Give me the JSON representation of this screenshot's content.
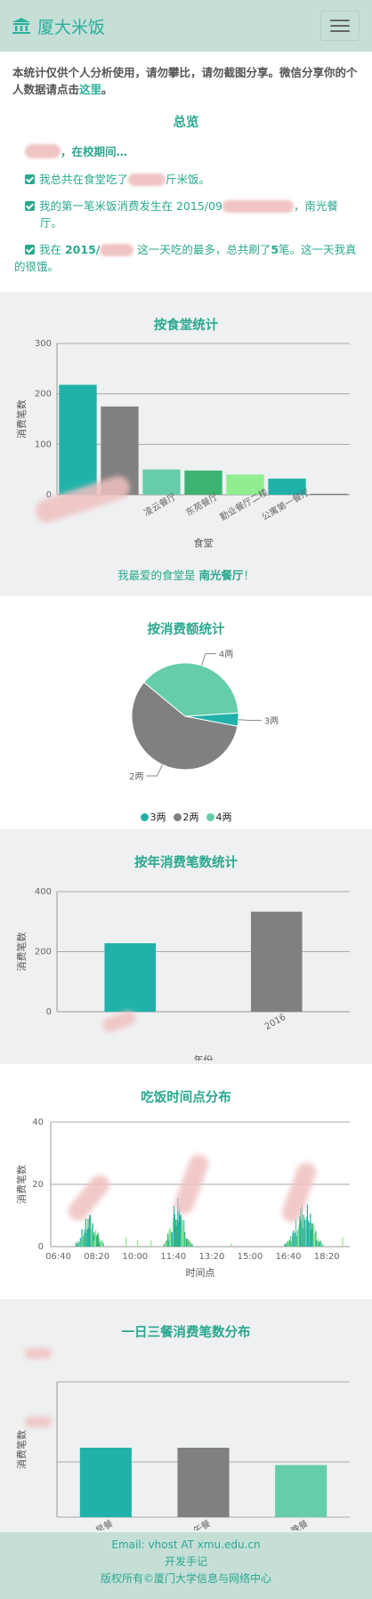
{
  "nav": {
    "brand": "厦大米饭",
    "icon": "bank-icon",
    "menu_icon": "hamburger-menu-icon"
  },
  "intro": {
    "text": "本统计仅供个人分析使用，请勿攀比，请勿截图分享。微信分享你的个人数据请点击",
    "link": "这里",
    "end": "。"
  },
  "overview": {
    "title": "总览",
    "greeting": "，在校期间…",
    "items": [
      {
        "pre": "我总共在食堂吃了",
        "post": "斤米饭。"
      },
      {
        "pre": "我的第一笔米饭消费发生在 2015/09",
        "post": "，南光餐厅。"
      },
      {
        "pre": "我在 ",
        "bold": "2015/",
        "mid": " 这一天吃的最多，总共刷了",
        "count": "5",
        "post": "笔。这一天我真的很饿。"
      }
    ]
  },
  "colors": {
    "teal": "#20b2aa",
    "gray": "#808080",
    "mint": "#66cdaa",
    "green": "#3cb371",
    "lightgreen": "#90ee90",
    "accent": "#2aa88f"
  },
  "canteen": {
    "title": "按食堂统计",
    "favorite_pre": "我最爱的食堂是 ",
    "favorite": "南光餐厅",
    "favorite_post": "！",
    "chart_data": {
      "type": "bar",
      "xlabel": "食堂",
      "ylabel": "消费笔数",
      "ylim": [
        0,
        300
      ],
      "yticks": [
        0,
        100,
        200,
        300
      ],
      "categories": [
        "",
        "",
        "凌云餐厅",
        "东苑餐厅",
        "勤业餐厅二楼",
        "公寓第一餐厅",
        ""
      ],
      "values": [
        218,
        175,
        50,
        48,
        40,
        32,
        2
      ],
      "colors": [
        "#20b2aa",
        "#808080",
        "#66cdaa",
        "#3cb371",
        "#90ee90",
        "#20b2aa",
        "#808080"
      ]
    }
  },
  "amount": {
    "title": "按消费额统计",
    "chart_data": {
      "type": "pie",
      "slices": [
        {
          "label": "3两",
          "value": 4,
          "color": "#20b2aa"
        },
        {
          "label": "2两",
          "value": 58,
          "color": "#808080"
        },
        {
          "label": "4两",
          "value": 38,
          "color": "#66cdaa"
        }
      ],
      "legend": [
        "3两",
        "2两",
        "4两"
      ]
    }
  },
  "yearly": {
    "title": "按年消费笔数统计",
    "chart_data": {
      "type": "bar",
      "xlabel": "年份",
      "ylabel": "消费笔数",
      "ylim": [
        0,
        400
      ],
      "yticks": [
        0,
        200,
        400
      ],
      "categories": [
        "",
        "2016"
      ],
      "values": [
        228,
        333
      ],
      "colors": [
        "#20b2aa",
        "#808080"
      ]
    }
  },
  "timeofday": {
    "title": "吃饭时间点分布",
    "chart_data": {
      "type": "bar",
      "xlabel": "时间点",
      "ylabel": "消费笔数",
      "ylim": [
        0,
        40
      ],
      "yticks": [
        0,
        20,
        40
      ],
      "xticks": [
        "06:40",
        "08:20",
        "10:00",
        "11:40",
        "13:20",
        "15:00",
        "16:40",
        "18:20"
      ],
      "x_range": [
        "06:00",
        "19:00"
      ],
      "clusters": [
        {
          "center": "08:00",
          "peak": 9,
          "spread": 25
        },
        {
          "center": "11:50",
          "peak": 15,
          "spread": 22
        },
        {
          "center": "17:20",
          "peak": 13,
          "spread": 30
        }
      ]
    }
  },
  "meals": {
    "title": "一日三餐消费笔数分布",
    "chart_data": {
      "type": "bar",
      "ylabel": "消费笔数",
      "categories": [
        "早餐",
        "午餐",
        "晚餐"
      ],
      "values": [
        1.0,
        1.0,
        0.75
      ],
      "colors": [
        "#20b2aa",
        "#808080",
        "#66cdaa"
      ]
    }
  },
  "footer": {
    "email": "Email: vhost AT xmu.edu.cn",
    "notes": "开发手记",
    "copyright": "版权所有©厦门大学信息与网络中心"
  }
}
